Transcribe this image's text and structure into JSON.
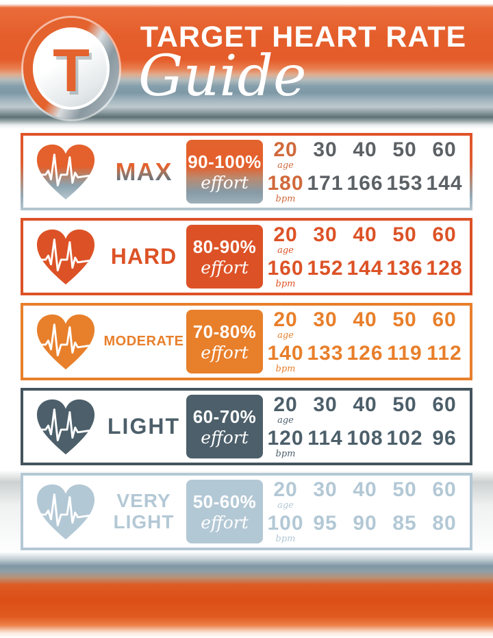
{
  "header": {
    "logo_letter": "T",
    "title": "TARGET HEART RATE",
    "subtitle": "Guide"
  },
  "labels": {
    "age_unit": "age",
    "bpm_unit": "bpm",
    "effort_word": "effort"
  },
  "zones": [
    {
      "name": "MAX",
      "effort_pct": "90-100%",
      "ages": [
        20,
        30,
        40,
        50,
        60
      ],
      "bpm": [
        180,
        171,
        166,
        153,
        144
      ]
    },
    {
      "name": "HARD",
      "effort_pct": "80-90%",
      "ages": [
        20,
        30,
        40,
        50,
        60
      ],
      "bpm": [
        160,
        152,
        144,
        136,
        128
      ]
    },
    {
      "name": "MODERATE",
      "effort_pct": "70-80%",
      "ages": [
        20,
        30,
        40,
        50,
        60
      ],
      "bpm": [
        140,
        133,
        126,
        119,
        112
      ]
    },
    {
      "name": "LIGHT",
      "effort_pct": "60-70%",
      "ages": [
        20,
        30,
        40,
        50,
        60
      ],
      "bpm": [
        120,
        114,
        108,
        102,
        96
      ]
    },
    {
      "name": "VERY LIGHT",
      "effort_pct": "50-60%",
      "ages": [
        20,
        30,
        40,
        50,
        60
      ],
      "bpm": [
        100,
        95,
        90,
        85,
        80
      ]
    }
  ],
  "colors": {
    "max_orange": "#e3622e",
    "max_slate": "#7d95a2",
    "max_secondary_text": "#5c6165",
    "hard": "#dc5226",
    "moderate": "#e87f2b",
    "light": "#4c5f6a",
    "very_light": "#b3c8d5",
    "header_orange": "#e45e2b",
    "header_steel": "#7e98a6"
  },
  "chart_data": {
    "type": "table",
    "title": "Target Heart Rate Guide",
    "x_label": "age",
    "y_label": "bpm",
    "ages": [
      20,
      30,
      40,
      50,
      60
    ],
    "rows": [
      {
        "zone": "MAX",
        "effort": "90-100%",
        "bpm": [
          180,
          171,
          166,
          153,
          144
        ]
      },
      {
        "zone": "HARD",
        "effort": "80-90%",
        "bpm": [
          160,
          152,
          144,
          136,
          128
        ]
      },
      {
        "zone": "MODERATE",
        "effort": "70-80%",
        "bpm": [
          140,
          133,
          126,
          119,
          112
        ]
      },
      {
        "zone": "LIGHT",
        "effort": "60-70%",
        "bpm": [
          120,
          114,
          108,
          102,
          96
        ]
      },
      {
        "zone": "VERY LIGHT",
        "effort": "50-60%",
        "bpm": [
          100,
          95,
          90,
          85,
          80
        ]
      }
    ]
  }
}
